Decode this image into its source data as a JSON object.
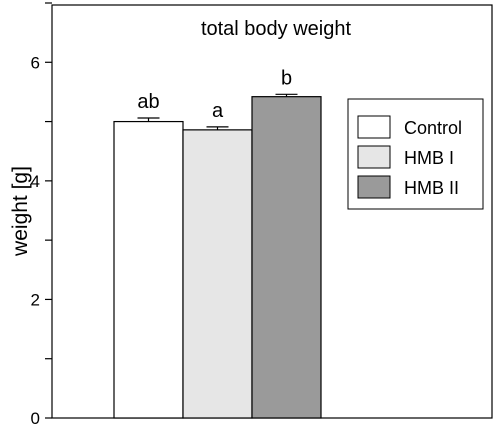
{
  "chart_data": {
    "type": "bar",
    "title": "total body weight",
    "xlabel": "",
    "ylabel": "weight [g]",
    "ylim": [
      0,
      7
    ],
    "yticks": [
      0,
      2,
      4,
      6
    ],
    "grid": false,
    "legend_position": "right",
    "series": [
      {
        "name": "Control",
        "value": 5.0,
        "error": 0.06,
        "significance": "ab",
        "color": "#ffffff"
      },
      {
        "name": "HMB I",
        "value": 4.86,
        "error": 0.05,
        "significance": "a",
        "color": "#e6e6e6"
      },
      {
        "name": "HMB II",
        "value": 5.42,
        "error": 0.04,
        "significance": "b",
        "color": "#9a9a9a"
      }
    ]
  }
}
